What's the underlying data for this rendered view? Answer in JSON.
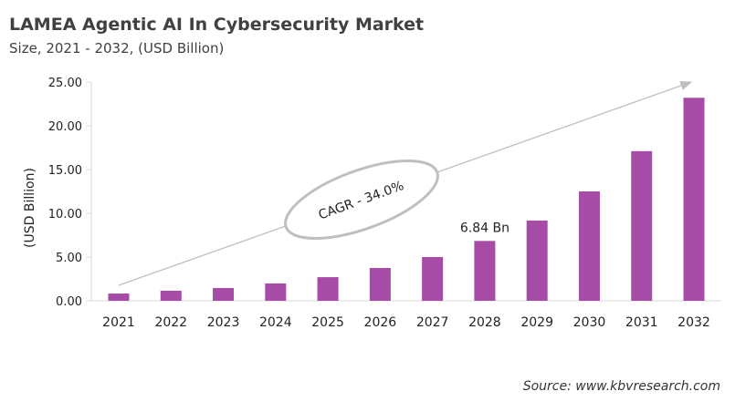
{
  "title": "LAMEA Agentic AI In Cybersecurity Market",
  "subtitle": "Size, 2021 - 2032, (USD Billion)",
  "source": "Source: www.kbvresearch.com",
  "colors": {
    "bar": "#a64ca6",
    "axis": "#d9d9d9",
    "arrow": "#bfbfbf"
  },
  "chart_data": {
    "type": "bar",
    "categories": [
      "2021",
      "2022",
      "2023",
      "2024",
      "2025",
      "2026",
      "2027",
      "2028",
      "2029",
      "2030",
      "2031",
      "2032"
    ],
    "values": [
      0.83,
      1.15,
      1.46,
      1.98,
      2.7,
      3.75,
      5.0,
      6.84,
      9.17,
      12.5,
      17.1,
      23.2
    ],
    "ylabel": "(USD Billion)",
    "ylim": [
      0,
      25
    ],
    "yticks": [
      "0.00",
      "5.00",
      "10.00",
      "15.00",
      "20.00",
      "25.00"
    ],
    "grid": false,
    "annotations": {
      "data_label": "6.84 Bn",
      "data_label_category": "2028",
      "cagr": "CAGR - 34.0%"
    }
  }
}
